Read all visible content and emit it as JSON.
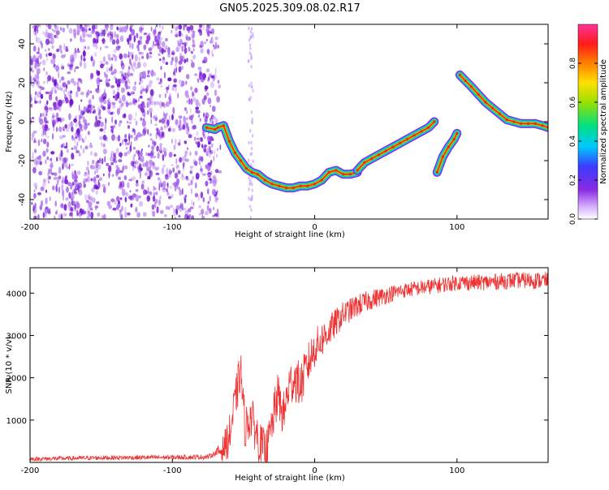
{
  "title": "GN05.2025.309.08.02.R17",
  "chart_data": [
    {
      "type": "heatmap",
      "name": "spectrogram",
      "xlabel": "Height of straight line (km)",
      "ylabel": "Frequency (Hz)",
      "xlim": [
        -200,
        164
      ],
      "ylim": [
        -50,
        50
      ],
      "xticks": [
        -200,
        -100,
        0,
        100
      ],
      "yticks": [
        -40,
        -20,
        0,
        20,
        40
      ],
      "colorbar": {
        "label": "Normalized spectral amplitude",
        "ticks": [
          "0.0",
          "0.2",
          "0.4",
          "0.6",
          "0.8"
        ],
        "tick_values": [
          0.0,
          0.2,
          0.4,
          0.6,
          0.8
        ],
        "range": [
          0,
          1
        ],
        "colors": [
          "#ffffff",
          "#8a2be2",
          "#3b3bff",
          "#00c8ff",
          "#00e080",
          "#9be000",
          "#ffe000",
          "#ff8000",
          "#ff1a1a",
          "#ff3399"
        ]
      },
      "noise_region": {
        "x_range": [
          -200,
          -68
        ],
        "y_range": [
          -50,
          50
        ],
        "amplitude": 0.1
      },
      "ridges": [
        {
          "segment": "A",
          "x": [
            -76,
            -70,
            -68,
            -64,
            -60,
            -56,
            -52,
            -48,
            -44,
            -40,
            -35,
            -30,
            -25,
            -20,
            -15,
            -10,
            -5,
            0,
            5,
            10,
            15,
            20,
            25,
            30
          ],
          "y": [
            -3,
            -4,
            -3,
            -2,
            -10,
            -16,
            -20,
            -24,
            -26,
            -27,
            -30,
            -32,
            -33,
            -34,
            -34,
            -33,
            -33,
            -32,
            -30,
            -26,
            -25,
            -27,
            -27,
            -26
          ]
        },
        {
          "segment": "B",
          "x": [
            30,
            35,
            40,
            45,
            50,
            55,
            60,
            65,
            70,
            75,
            80,
            84
          ],
          "y": [
            -25,
            -21,
            -19,
            -17,
            -15,
            -13,
            -11,
            -9,
            -7,
            -5,
            -3,
            0
          ]
        },
        {
          "segment": "C",
          "x": [
            86,
            90,
            94,
            98,
            100
          ],
          "y": [
            -26,
            -18,
            -13,
            -9,
            -6
          ]
        },
        {
          "segment": "D",
          "x": [
            102,
            106,
            110,
            115,
            120,
            125,
            130,
            135,
            140,
            145,
            150,
            155,
            160,
            164
          ],
          "y": [
            24,
            21,
            18,
            14,
            10,
            7,
            4,
            1,
            0,
            -1,
            -1,
            -1,
            -2,
            -3
          ]
        }
      ]
    },
    {
      "type": "line",
      "name": "snr",
      "xlabel": "Height of straight line (km)",
      "ylabel": "SNR (10 * v/v)",
      "xlim": [
        -200,
        164
      ],
      "ylim": [
        0,
        4600
      ],
      "xticks": [
        -200,
        -100,
        0,
        100
      ],
      "yticks": [
        1000,
        2000,
        3000,
        4000
      ],
      "color": "#ee3333",
      "trend": {
        "x": [
          -200,
          -150,
          -100,
          -75,
          -65,
          -60,
          -56,
          -52,
          -49,
          -45,
          -41,
          -38,
          -34,
          -30,
          -26,
          -22,
          -18,
          -14,
          -10,
          -5,
          0,
          5,
          10,
          15,
          20,
          30,
          40,
          50,
          60,
          70,
          80,
          90,
          100,
          110,
          120,
          130,
          140,
          150,
          164
        ],
        "y": [
          80,
          110,
          120,
          130,
          300,
          600,
          1400,
          2200,
          800,
          1100,
          700,
          400,
          200,
          900,
          1600,
          1100,
          1800,
          2000,
          1800,
          2300,
          2700,
          2900,
          3100,
          3300,
          3500,
          3700,
          3850,
          3950,
          4050,
          4100,
          4150,
          4200,
          4250,
          4250,
          4250,
          4280,
          4300,
          4300,
          4300
        ]
      },
      "noise_amplitude": [
        {
          "x": -200,
          "amp": 50
        },
        {
          "x": -70,
          "amp": 60
        },
        {
          "x": -60,
          "amp": 500
        },
        {
          "x": -10,
          "amp": 550
        },
        {
          "x": 20,
          "amp": 300
        },
        {
          "x": 60,
          "amp": 180
        },
        {
          "x": 164,
          "amp": 200
        }
      ]
    }
  ]
}
